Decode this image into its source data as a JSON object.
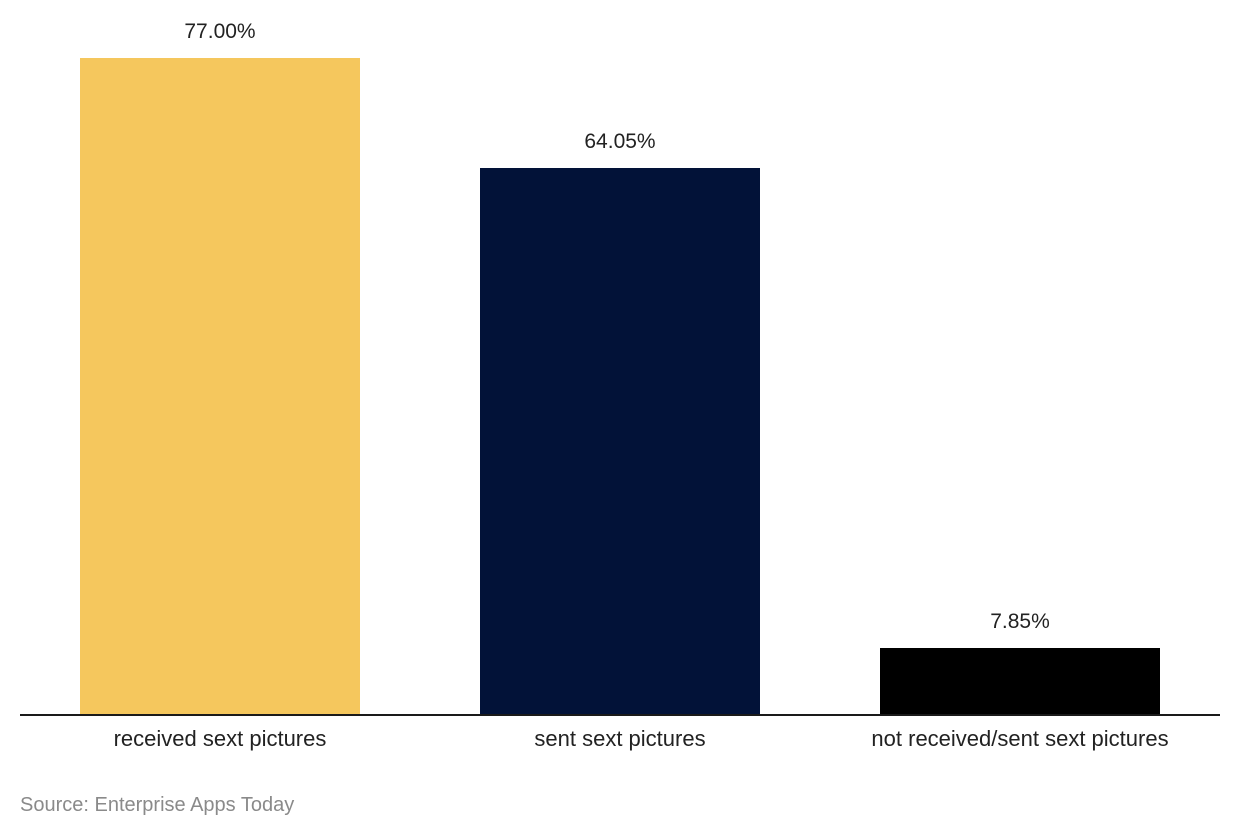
{
  "chart_data": {
    "type": "bar",
    "title": "",
    "xlabel": "",
    "ylabel": "",
    "categories": [
      "received sext pictures",
      "sent sext pictures",
      "not received/sent sext pictures"
    ],
    "values": [
      77.0,
      64.05,
      7.85
    ],
    "value_labels": [
      "77.00%",
      "64.05%",
      "7.85%"
    ],
    "colors": [
      "#F5C75D",
      "#021238",
      "#000000"
    ],
    "ylim": [
      0,
      77
    ],
    "grid": false,
    "legend": "none",
    "source": "Source: Enterprise Apps Today"
  }
}
